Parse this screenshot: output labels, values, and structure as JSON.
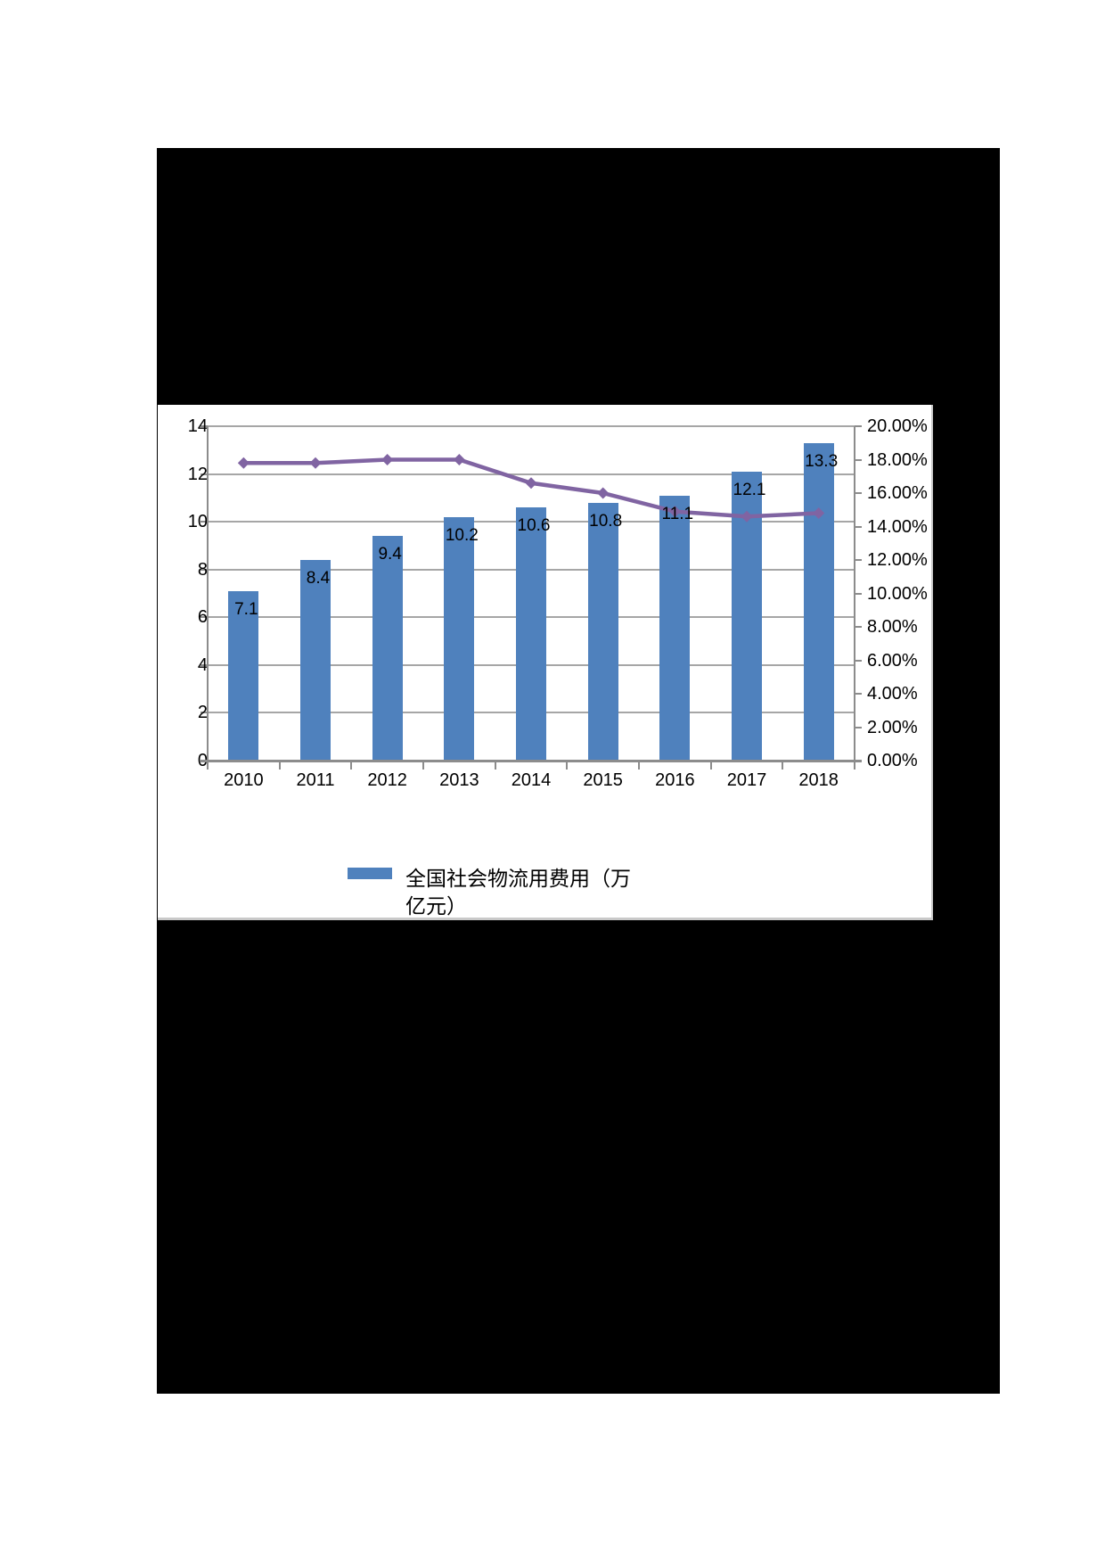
{
  "page": {
    "background_color": "#ffffff",
    "black_region_color": "#000000"
  },
  "chart_data": {
    "type": "bar",
    "combo": "bar+line",
    "categories": [
      "2010",
      "2011",
      "2012",
      "2013",
      "2014",
      "2015",
      "2016",
      "2017",
      "2018"
    ],
    "series": [
      {
        "kind": "bar",
        "axis": "left",
        "name": "全国社会物流用费用（万亿元）",
        "color": "#4f81bd",
        "values": [
          7.1,
          8.4,
          9.4,
          10.2,
          10.6,
          10.8,
          11.1,
          12.1,
          13.3
        ],
        "data_labels": [
          "7.1",
          "8.4",
          "9.4",
          "10.2",
          "10.6",
          "10.8",
          "11.1",
          "12.1",
          "13.3"
        ]
      },
      {
        "kind": "line",
        "axis": "right",
        "color": "#8064a2",
        "marker": "diamond",
        "values_percent": [
          17.8,
          17.8,
          18.0,
          18.0,
          16.6,
          16.0,
          14.9,
          14.6,
          14.8
        ]
      }
    ],
    "left_axis": {
      "min": 0,
      "max": 14,
      "step": 2,
      "tick_labels": [
        "0",
        "2",
        "4",
        "6",
        "8",
        "10",
        "12",
        "14"
      ]
    },
    "right_axis": {
      "min": 0,
      "max": 20,
      "step": 2,
      "tick_labels": [
        "0.00%",
        "2.00%",
        "4.00%",
        "6.00%",
        "8.00%",
        "10.00%",
        "12.00%",
        "14.00%",
        "16.00%",
        "18.00%",
        "20.00%"
      ]
    },
    "grid": true,
    "gridline_color": "#a6a6a6",
    "axis_color": "#8c8c8c",
    "legend": {
      "position": "bottom",
      "entries": [
        {
          "label": "全国社会物流用费用（万亿元）",
          "color": "#4f81bd"
        }
      ]
    }
  }
}
